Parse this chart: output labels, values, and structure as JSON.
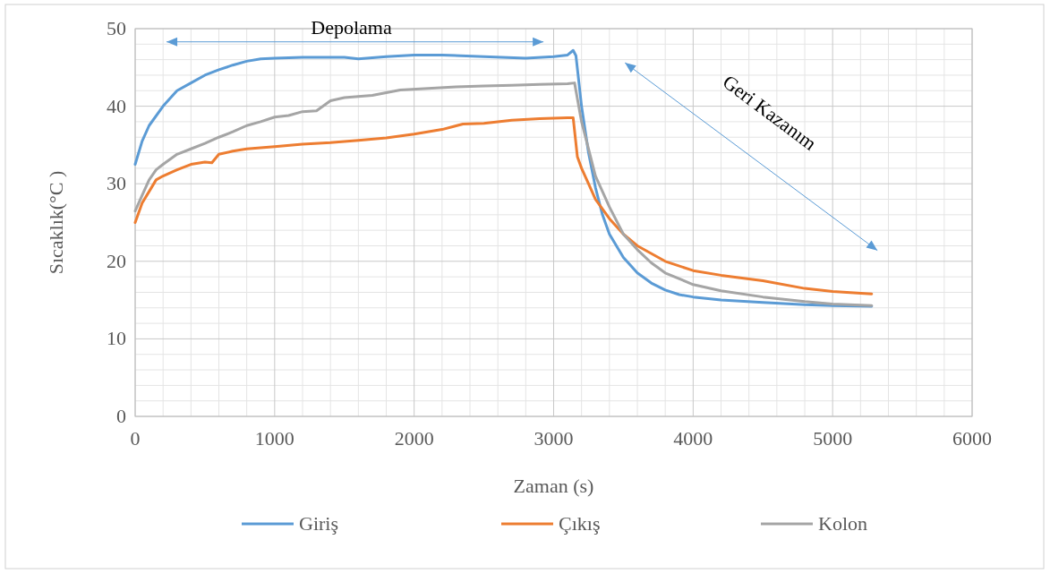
{
  "chart_data": {
    "type": "line",
    "xlabel": "Zaman (s)",
    "ylabel": "Sıcaklık(°C )",
    "xlim": [
      0,
      6000
    ],
    "xticks": [
      0,
      1000,
      2000,
      3000,
      4000,
      5000,
      6000
    ],
    "ylim": [
      0,
      50
    ],
    "yticks": [
      0,
      10,
      20,
      30,
      40,
      50
    ],
    "grid": true,
    "legend": "bottom",
    "line_style": "solid",
    "marker": "none",
    "annotations": [
      "Depolama",
      "Geri Kazanım"
    ],
    "series": [
      {
        "name": "Giriş",
        "color": "#5b9bd5",
        "x": [
          0,
          50,
          100,
          200,
          300,
          400,
          500,
          600,
          700,
          800,
          900,
          1000,
          1200,
          1500,
          1600,
          1800,
          2000,
          2200,
          2500,
          2800,
          3000,
          3100,
          3140,
          3160,
          3200,
          3250,
          3300,
          3350,
          3400,
          3500,
          3600,
          3700,
          3800,
          3900,
          4000,
          4200,
          4500,
          4800,
          5000,
          5280
        ],
        "values": [
          32.5,
          35.5,
          37.5,
          40,
          42,
          43,
          44,
          44.7,
          45.3,
          45.8,
          46.1,
          46.2,
          46.3,
          46.3,
          46.1,
          46.4,
          46.6,
          46.6,
          46.4,
          46.2,
          46.4,
          46.6,
          47.2,
          46.5,
          40,
          34,
          29.5,
          26,
          23.5,
          20.5,
          18.5,
          17.2,
          16.3,
          15.7,
          15.4,
          15,
          14.7,
          14.4,
          14.3,
          14.2
        ]
      },
      {
        "name": "Çıkış",
        "color": "#ed7d31",
        "x": [
          0,
          50,
          100,
          150,
          200,
          300,
          400,
          500,
          550,
          600,
          700,
          800,
          1000,
          1200,
          1400,
          1600,
          1800,
          2000,
          2200,
          2350,
          2500,
          2700,
          2900,
          3100,
          3140,
          3170,
          3200,
          3250,
          3300,
          3400,
          3500,
          3600,
          3800,
          4000,
          4200,
          4500,
          4800,
          5000,
          5280
        ],
        "values": [
          25,
          27.5,
          29,
          30.5,
          31,
          31.8,
          32.5,
          32.8,
          32.7,
          33.8,
          34.2,
          34.5,
          34.8,
          35.1,
          35.3,
          35.6,
          35.9,
          36.4,
          37,
          37.7,
          37.8,
          38.2,
          38.4,
          38.5,
          38.5,
          33.5,
          32,
          30,
          28,
          25.5,
          23.5,
          22,
          20,
          18.8,
          18.2,
          17.5,
          16.5,
          16.1,
          15.8
        ]
      },
      {
        "name": "Kolon",
        "color": "#a5a5a5",
        "x": [
          0,
          50,
          100,
          150,
          200,
          300,
          400,
          500,
          600,
          700,
          800,
          900,
          1000,
          1100,
          1200,
          1300,
          1400,
          1500,
          1700,
          1900,
          2100,
          2300,
          2500,
          2700,
          2900,
          3100,
          3150,
          3200,
          3250,
          3300,
          3400,
          3500,
          3600,
          3700,
          3800,
          4000,
          4200,
          4500,
          4800,
          5000,
          5280
        ],
        "values": [
          26.5,
          28.5,
          30.5,
          31.8,
          32.5,
          33.8,
          34.5,
          35.2,
          36,
          36.7,
          37.5,
          38,
          38.6,
          38.8,
          39.3,
          39.4,
          40.7,
          41.1,
          41.4,
          42.1,
          42.3,
          42.5,
          42.6,
          42.7,
          42.8,
          42.9,
          43,
          38,
          34.5,
          31,
          27,
          23.5,
          21.5,
          19.8,
          18.5,
          17,
          16.2,
          15.4,
          14.8,
          14.5,
          14.3
        ]
      }
    ]
  }
}
